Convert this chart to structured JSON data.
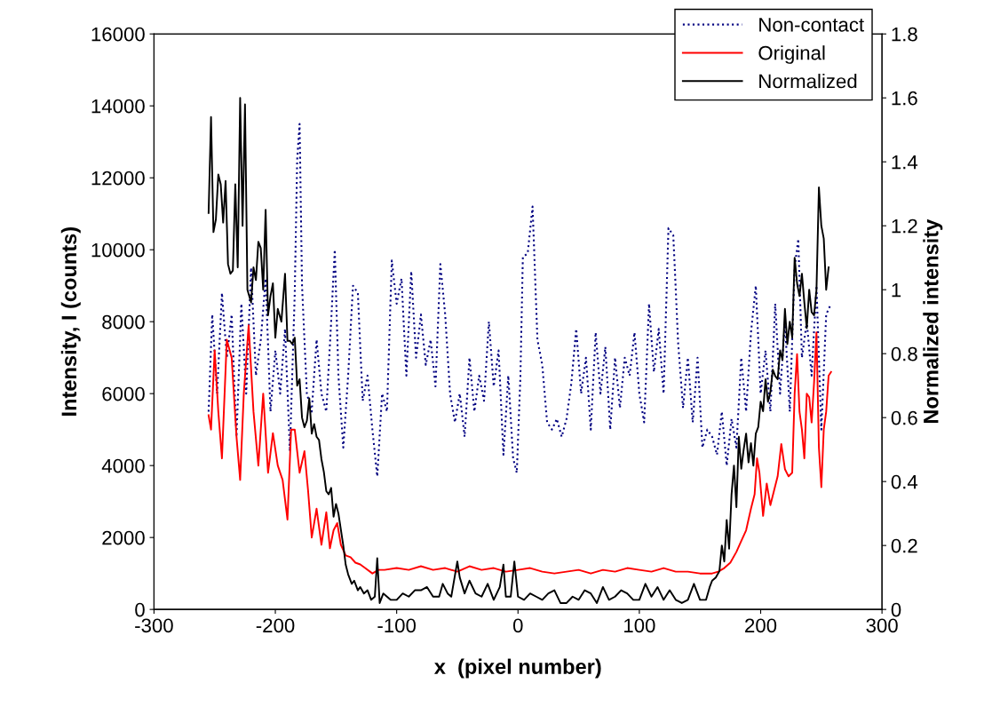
{
  "chart_data": {
    "type": "line",
    "xlabel": "x  (pixel number)",
    "ylabel": "Intensity, I (counts)",
    "y2label": "Normalized intensity",
    "xlim": [
      -300,
      300
    ],
    "xticks": [
      -300,
      -200,
      -100,
      0,
      100,
      200,
      300
    ],
    "ylim": [
      0,
      16000
    ],
    "yticks": [
      0,
      2000,
      4000,
      6000,
      8000,
      10000,
      12000,
      14000,
      16000
    ],
    "y2lim": [
      0,
      1.8
    ],
    "y2ticks": [
      0,
      0.2,
      0.4,
      0.6,
      0.8,
      1,
      1.2,
      1.4,
      1.6,
      1.8
    ],
    "grid": false,
    "legend": "top right",
    "marker": "none",
    "series": [
      {
        "name": "Non-contact",
        "color": "#000080",
        "line_style": "dotted",
        "x": [
          -255,
          -252,
          -248,
          -244,
          -240,
          -236,
          -232,
          -228,
          -224,
          -220,
          -216,
          -212,
          -208,
          -204,
          -200,
          -196,
          -192,
          -188,
          -184,
          -182,
          -180,
          -178,
          -174,
          -170,
          -166,
          -162,
          -158,
          -154,
          -151,
          -148,
          -144,
          -140,
          -136,
          -132,
          -128,
          -124,
          -120,
          -116,
          -112,
          -108,
          -104,
          -100,
          -96,
          -92,
          -88,
          -84,
          -80,
          -76,
          -72,
          -68,
          -64,
          -60,
          -56,
          -52,
          -48,
          -44,
          -40,
          -36,
          -32,
          -28,
          -24,
          -20,
          -16,
          -12,
          -8,
          -4,
          -1,
          2,
          4,
          8,
          12,
          16,
          20,
          24,
          28,
          32,
          36,
          40,
          44,
          48,
          52,
          56,
          60,
          64,
          68,
          72,
          76,
          80,
          84,
          88,
          92,
          96,
          100,
          104,
          108,
          112,
          116,
          120,
          124,
          128,
          132,
          136,
          140,
          144,
          148,
          152,
          156,
          160,
          164,
          168,
          172,
          176,
          180,
          184,
          188,
          192,
          196,
          200,
          204,
          208,
          212,
          216,
          220,
          224,
          228,
          231,
          234,
          238,
          242,
          246,
          250,
          254,
          258
        ],
        "values": [
          5500,
          8200,
          6000,
          8800,
          7000,
          8200,
          4800,
          8500,
          6000,
          9500,
          6500,
          7500,
          9200,
          5500,
          7200,
          6000,
          7800,
          4400,
          8800,
          12500,
          13500,
          9000,
          6000,
          5500,
          7500,
          6000,
          5500,
          8000,
          10000,
          6500,
          4500,
          6500,
          9000,
          8800,
          5800,
          6500,
          5000,
          3700,
          6000,
          5500,
          9700,
          8500,
          9200,
          6500,
          9400,
          7000,
          8200,
          6800,
          7500,
          6200,
          9600,
          8200,
          6000,
          5200,
          6000,
          4800,
          7000,
          5500,
          6500,
          5800,
          8000,
          6200,
          7200,
          4300,
          6500,
          4200,
          3800,
          6500,
          9800,
          9900,
          11200,
          7500,
          6800,
          5200,
          5000,
          5300,
          4800,
          5300,
          6300,
          7800,
          6000,
          7000,
          5000,
          7700,
          6000,
          7300,
          5000,
          7000,
          5600,
          7000,
          6500,
          7700,
          6000,
          5200,
          8500,
          6600,
          7800,
          6000,
          10600,
          10400,
          7400,
          5600,
          7000,
          5200,
          7000,
          4500,
          5000,
          4800,
          4300,
          5500,
          4000,
          5300,
          4500,
          7000,
          5500,
          7700,
          9000,
          6000,
          7200,
          5500,
          8500,
          6000,
          8000,
          5500,
          9500,
          10300,
          7000,
          8000,
          6500,
          9000,
          5000,
          8200,
          8500
        ]
      },
      {
        "name": "Original",
        "color": "#ff0000",
        "line_style": "solid",
        "x": [
          -255,
          -253,
          -250,
          -247,
          -244,
          -240,
          -236,
          -232,
          -229,
          -226,
          -222,
          -218,
          -214,
          -210,
          -206,
          -202,
          -198,
          -194,
          -190,
          -187,
          -184,
          -180,
          -176,
          -173,
          -170,
          -166,
          -162,
          -158,
          -155,
          -152,
          -149,
          -146,
          -142,
          -138,
          -134,
          -130,
          -126,
          -120,
          -115,
          -110,
          -100,
          -90,
          -80,
          -70,
          -60,
          -50,
          -40,
          -30,
          -20,
          -10,
          0,
          10,
          20,
          30,
          40,
          50,
          60,
          70,
          80,
          90,
          100,
          110,
          120,
          130,
          140,
          150,
          160,
          165,
          170,
          175,
          180,
          184,
          188,
          192,
          195,
          197,
          199,
          202,
          205,
          208,
          211,
          214,
          217,
          220,
          223,
          226,
          228,
          230,
          232,
          234,
          236,
          238,
          240,
          242,
          244,
          246,
          248,
          250,
          252,
          254,
          256,
          258
        ],
        "values": [
          5400,
          5000,
          7200,
          5500,
          4200,
          7500,
          7000,
          4800,
          3600,
          6000,
          7900,
          5500,
          4000,
          6000,
          3800,
          4900,
          4000,
          3600,
          2500,
          5000,
          5000,
          3800,
          4400,
          3300,
          2000,
          2800,
          1800,
          2700,
          1700,
          2200,
          2400,
          1800,
          1500,
          1450,
          1300,
          1250,
          1150,
          1000,
          1100,
          1100,
          1150,
          1100,
          1200,
          1100,
          1150,
          1050,
          1200,
          1100,
          1150,
          1050,
          1100,
          1150,
          1050,
          1000,
          1050,
          1100,
          1000,
          1100,
          1050,
          1150,
          1100,
          1050,
          1150,
          1050,
          1050,
          1000,
          1000,
          1050,
          1150,
          1300,
          1600,
          1900,
          2200,
          2800,
          3200,
          4200,
          3800,
          2600,
          3500,
          2900,
          3300,
          3700,
          4600,
          3900,
          3700,
          3800,
          6000,
          7100,
          5500,
          5000,
          4200,
          6000,
          5900,
          5200,
          6300,
          7700,
          4500,
          3400,
          5000,
          5500,
          6500,
          6600
        ]
      },
      {
        "name": "Normalized",
        "color": "#000000",
        "line_style": "solid",
        "axis": "y2",
        "x": [
          -255,
          -253,
          -251,
          -249,
          -247,
          -245,
          -243,
          -241,
          -239,
          -237,
          -235,
          -233,
          -231,
          -229,
          -227,
          -225,
          -223,
          -220,
          -218,
          -216,
          -214,
          -212,
          -210,
          -208,
          -206,
          -204,
          -202,
          -200,
          -198,
          -195,
          -192,
          -190,
          -188,
          -186,
          -184,
          -182,
          -180,
          -178,
          -176,
          -174,
          -172,
          -170,
          -168,
          -166,
          -164,
          -162,
          -160,
          -158,
          -156,
          -154,
          -152,
          -150,
          -148,
          -146,
          -144,
          -142,
          -140,
          -137,
          -135,
          -132,
          -130,
          -127,
          -124,
          -121,
          -118,
          -116,
          -114,
          -111,
          -108,
          -105,
          -100,
          -95,
          -90,
          -85,
          -80,
          -75,
          -70,
          -65,
          -62,
          -58,
          -55,
          -50,
          -48,
          -44,
          -40,
          -35,
          -30,
          -25,
          -20,
          -15,
          -12,
          -10,
          -6,
          -3,
          0,
          5,
          10,
          15,
          20,
          25,
          30,
          35,
          40,
          45,
          50,
          55,
          60,
          65,
          70,
          75,
          80,
          85,
          90,
          95,
          100,
          105,
          110,
          115,
          120,
          125,
          130,
          135,
          140,
          145,
          150,
          155,
          158,
          160,
          163,
          166,
          168,
          170,
          172,
          174,
          176,
          178,
          180,
          182,
          184,
          186,
          188,
          190,
          192,
          194,
          196,
          198,
          200,
          202,
          204,
          206,
          208,
          210,
          212,
          214,
          216,
          218,
          220,
          222,
          224,
          226,
          228,
          230,
          232,
          234,
          236,
          238,
          240,
          242,
          244,
          246,
          248,
          250,
          252,
          254,
          256
        ],
        "values": [
          1.24,
          1.54,
          1.18,
          1.22,
          1.36,
          1.33,
          1.21,
          1.34,
          1.08,
          1.05,
          1.06,
          1.33,
          1.07,
          1.6,
          1.2,
          1.58,
          1.0,
          0.96,
          1.07,
          1.03,
          1.15,
          1.13,
          1.0,
          1.25,
          0.92,
          0.98,
          1.02,
          0.85,
          0.94,
          0.9,
          1.05,
          0.84,
          0.84,
          0.83,
          0.85,
          0.7,
          0.72,
          0.6,
          0.57,
          0.59,
          0.66,
          0.55,
          0.58,
          0.54,
          0.53,
          0.47,
          0.43,
          0.37,
          0.36,
          0.38,
          0.29,
          0.33,
          0.3,
          0.25,
          0.2,
          0.14,
          0.11,
          0.08,
          0.09,
          0.06,
          0.07,
          0.05,
          0.06,
          0.03,
          0.04,
          0.16,
          0.02,
          0.05,
          0.04,
          0.03,
          0.03,
          0.05,
          0.04,
          0.06,
          0.06,
          0.07,
          0.04,
          0.04,
          0.08,
          0.05,
          0.04,
          0.15,
          0.1,
          0.05,
          0.09,
          0.05,
          0.04,
          0.08,
          0.03,
          0.07,
          0.14,
          0.04,
          0.04,
          0.15,
          0.04,
          0.03,
          0.05,
          0.04,
          0.03,
          0.05,
          0.06,
          0.02,
          0.02,
          0.04,
          0.03,
          0.06,
          0.05,
          0.02,
          0.07,
          0.03,
          0.04,
          0.06,
          0.05,
          0.03,
          0.03,
          0.08,
          0.04,
          0.07,
          0.03,
          0.06,
          0.03,
          0.02,
          0.03,
          0.08,
          0.03,
          0.03,
          0.07,
          0.09,
          0.1,
          0.12,
          0.2,
          0.15,
          0.28,
          0.19,
          0.36,
          0.45,
          0.32,
          0.54,
          0.44,
          0.5,
          0.55,
          0.46,
          0.52,
          0.45,
          0.55,
          0.57,
          0.65,
          0.62,
          0.72,
          0.65,
          0.68,
          0.75,
          0.73,
          0.72,
          0.81,
          0.78,
          0.94,
          0.83,
          0.9,
          0.85,
          1.1,
          1.02,
          0.98,
          1.05,
          0.96,
          0.88,
          1.0,
          0.93,
          0.92,
          1.0,
          1.32,
          1.2,
          1.16,
          1.0,
          1.07
        ]
      }
    ]
  }
}
